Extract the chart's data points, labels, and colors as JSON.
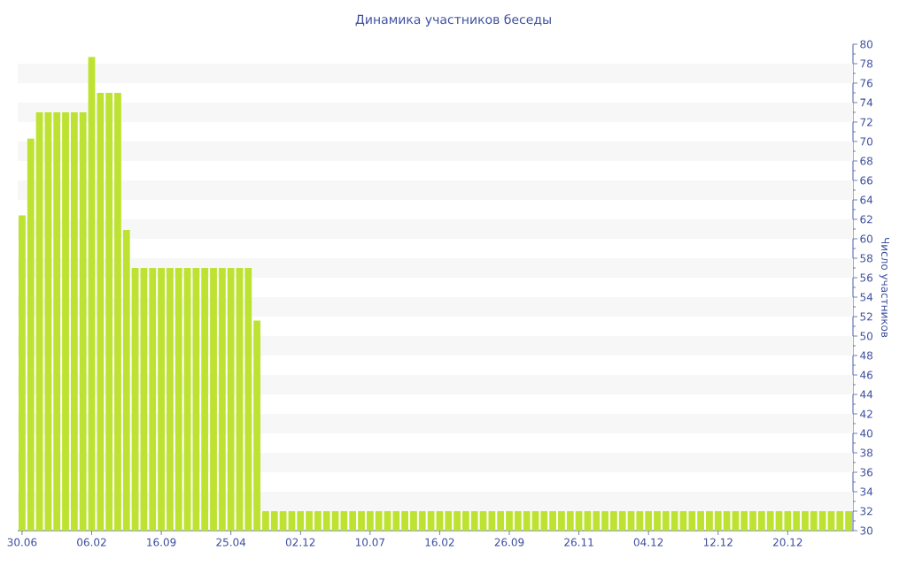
{
  "chart_data": {
    "type": "bar",
    "title": "Динамика участников беседы",
    "ylabel": "Число участников",
    "categories": [
      "30.06",
      null,
      null,
      null,
      null,
      null,
      null,
      null,
      "06.02",
      null,
      null,
      null,
      null,
      null,
      null,
      null,
      "16.09",
      null,
      null,
      null,
      null,
      null,
      null,
      null,
      "25.04",
      null,
      null,
      null,
      null,
      null,
      null,
      null,
      "02.12",
      null,
      null,
      null,
      null,
      null,
      null,
      null,
      "10.07",
      null,
      null,
      null,
      null,
      null,
      null,
      null,
      "16.02",
      null,
      null,
      null,
      null,
      null,
      null,
      null,
      "26.09",
      null,
      null,
      null,
      null,
      null,
      null,
      null,
      "26.11",
      null,
      null,
      null,
      null,
      null,
      null,
      null,
      "04.12",
      null,
      null,
      null,
      null,
      null,
      null,
      null,
      "12.12",
      null,
      null,
      null,
      null,
      null,
      null,
      null,
      "20.12",
      null,
      null,
      null,
      null,
      null,
      null,
      null
    ],
    "values": [
      62.4,
      70.3,
      73,
      73,
      73,
      73,
      73,
      73,
      78.7,
      75,
      75,
      75,
      60.9,
      57,
      57,
      57,
      57,
      57,
      57,
      57,
      57,
      57,
      57,
      57,
      57,
      57,
      57,
      51.6,
      32,
      32,
      32,
      32,
      32,
      32,
      32,
      32,
      32,
      32,
      32,
      32,
      32,
      32,
      32,
      32,
      32,
      32,
      32,
      32,
      32,
      32,
      32,
      32,
      32,
      32,
      32,
      32,
      32,
      32,
      32,
      32,
      32,
      32,
      32,
      32,
      32,
      32,
      32,
      32,
      32,
      32,
      32,
      32,
      32,
      32,
      32,
      32,
      32,
      32,
      32,
      32,
      32,
      32,
      32,
      32,
      32,
      32,
      32,
      32,
      32,
      32,
      32,
      32,
      32,
      32,
      32,
      32
    ],
    "color": "#bde232",
    "ylim": [
      30,
      80
    ],
    "yticks": [
      30,
      32,
      34,
      36,
      38,
      40,
      42,
      44,
      46,
      48,
      50,
      52,
      54,
      56,
      58,
      60,
      62,
      64,
      66,
      68,
      70,
      72,
      74,
      76,
      78,
      80
    ],
    "bands": [
      {
        "axis": "y",
        "from": 32,
        "to": 34,
        "color": "#f7f7f7"
      },
      {
        "axis": "y",
        "from": 36,
        "to": 38,
        "color": "#f7f7f7"
      },
      {
        "axis": "y",
        "from": 40,
        "to": 42,
        "color": "#f7f7f7"
      },
      {
        "axis": "y",
        "from": 44,
        "to": 46,
        "color": "#f7f7f7"
      },
      {
        "axis": "y",
        "from": 48,
        "to": 50,
        "color": "#f7f7f7"
      },
      {
        "axis": "y",
        "from": 52,
        "to": 54,
        "color": "#f7f7f7"
      },
      {
        "axis": "y",
        "from": 56,
        "to": 58,
        "color": "#f7f7f7"
      },
      {
        "axis": "y",
        "from": 60,
        "to": 62,
        "color": "#f7f7f7"
      },
      {
        "axis": "y",
        "from": 64,
        "to": 66,
        "color": "#f7f7f7"
      },
      {
        "axis": "y",
        "from": 68,
        "to": 70,
        "color": "#f7f7f7"
      },
      {
        "axis": "y",
        "from": 72,
        "to": 74,
        "color": "#f7f7f7"
      },
      {
        "axis": "y",
        "from": 76,
        "to": 78,
        "color": "#f7f7f7"
      }
    ]
  }
}
